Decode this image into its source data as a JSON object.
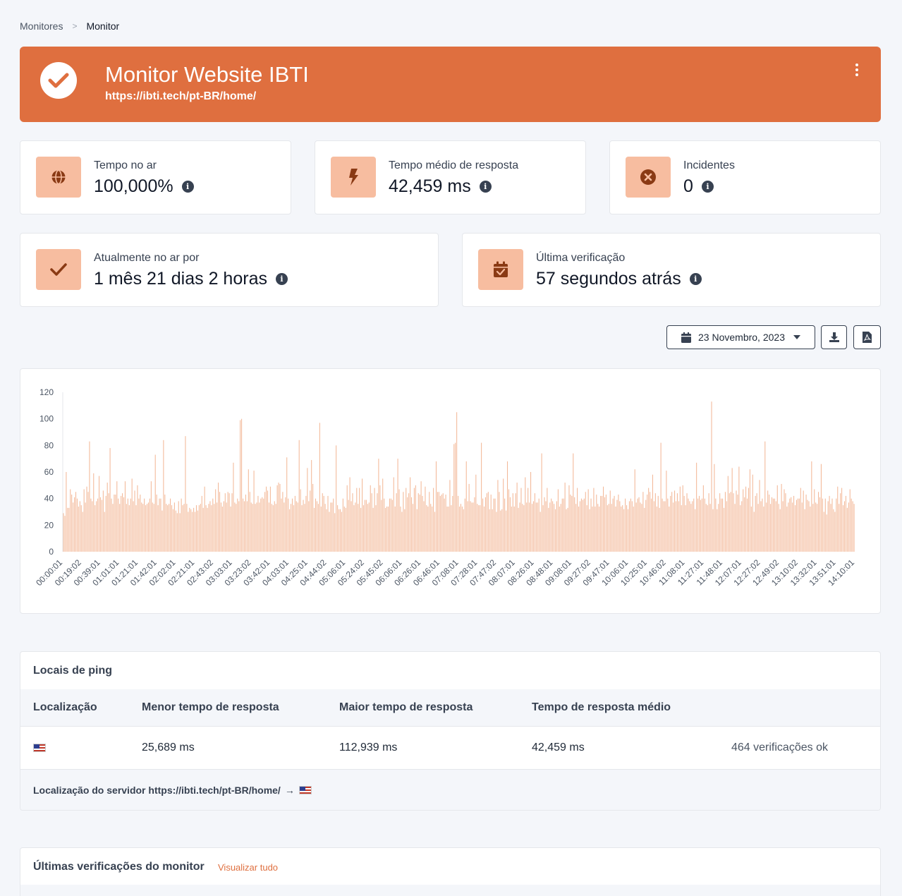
{
  "breadcrumb": {
    "parent": "Monitores",
    "separator": ">",
    "current": "Monitor"
  },
  "header": {
    "title": "Monitor Website IBTI",
    "url": "https://ibti.tech/pt-BR/home/",
    "status_icon": "check-circle-icon",
    "menu_icon": "ellipsis-vertical-icon"
  },
  "stats": {
    "uptime": {
      "label": "Tempo no ar",
      "value": "100,000%",
      "icon": "globe-icon"
    },
    "avg_response": {
      "label": "Tempo médio de resposta",
      "value": "42,459 ms",
      "icon": "bolt-icon"
    },
    "incidents": {
      "label": "Incidentes",
      "value": "0",
      "icon": "x-circle-icon"
    },
    "current_uptime": {
      "label": "Atualmente no ar por",
      "value": "1 mês 21 dias 2 horas",
      "icon": "check-icon"
    },
    "last_check": {
      "label": "Última verificação",
      "value": "57 segundos atrás",
      "icon": "calendar-check-icon"
    }
  },
  "toolbar": {
    "date": "23 Novembro, 2023",
    "download_icon": "download-icon",
    "pdf_icon": "file-pdf-icon"
  },
  "colors": {
    "accent": "#df6f3f",
    "icon_bg": "#f7bda0",
    "bar": "#f3b999"
  },
  "chart_data": {
    "type": "bar",
    "ylim": [
      0,
      120
    ],
    "yticks": [
      0,
      20,
      40,
      60,
      80,
      100,
      120
    ],
    "tick_labels": [
      "00:00:01",
      "00:19:02",
      "00:39:01",
      "01:01:01",
      "01:21:01",
      "01:42:01",
      "02:02:01",
      "02:21:01",
      "02:43:02",
      "03:03:01",
      "03:23:02",
      "03:42:01",
      "04:03:01",
      "04:25:01",
      "04:44:02",
      "05:06:01",
      "05:24:02",
      "05:45:02",
      "06:06:01",
      "06:26:01",
      "06:46:01",
      "07:08:01",
      "07:28:01",
      "07:47:02",
      "08:07:01",
      "08:26:01",
      "08:48:01",
      "09:08:01",
      "09:27:02",
      "09:47:01",
      "10:06:01",
      "10:25:01",
      "10:46:02",
      "11:08:01",
      "11:27:01",
      "11:48:01",
      "12:07:01",
      "12:27:02",
      "12:49:02",
      "13:10:02",
      "13:32:01",
      "13:51:01",
      "14:10:01"
    ],
    "values": [
      29,
      27,
      60,
      33,
      33,
      47,
      43,
      37,
      41,
      45,
      40,
      34,
      38,
      35,
      30,
      47,
      37,
      49,
      45,
      83,
      40,
      38,
      59,
      35,
      38,
      40,
      57,
      41,
      39,
      46,
      30,
      42,
      52,
      44,
      78,
      40,
      36,
      43,
      43,
      53,
      40,
      36,
      42,
      44,
      41,
      53,
      36,
      40,
      35,
      40,
      55,
      38,
      46,
      35,
      50,
      40,
      43,
      37,
      36,
      40,
      35,
      36,
      37,
      40,
      53,
      37,
      36,
      73,
      43,
      35,
      40,
      40,
      31,
      84,
      43,
      36,
      35,
      36,
      40,
      35,
      32,
      37,
      31,
      29,
      38,
      29,
      40,
      35,
      36,
      87,
      36,
      30,
      33,
      32,
      30,
      33,
      30,
      35,
      31,
      35,
      36,
      42,
      33,
      49,
      35,
      33,
      36,
      38,
      35,
      40,
      36,
      47,
      37,
      52,
      45,
      37,
      34,
      38,
      44,
      37,
      45,
      44,
      34,
      44,
      67,
      37,
      36,
      40,
      38,
      99,
      100,
      40,
      38,
      43,
      38,
      62,
      45,
      37,
      36,
      61,
      36,
      37,
      42,
      37,
      40,
      41,
      40,
      45,
      49,
      46,
      37,
      49,
      36,
      35,
      38,
      36,
      50,
      52,
      51,
      40,
      45,
      37,
      41,
      71,
      40,
      32,
      36,
      40,
      35,
      42,
      38,
      37,
      84,
      47,
      35,
      39,
      36,
      42,
      63,
      38,
      46,
      69,
      51,
      33,
      40,
      38,
      36,
      97,
      34,
      44,
      42,
      36,
      32,
      42,
      30,
      37,
      37,
      40,
      29,
      80,
      35,
      32,
      32,
      30,
      40,
      34,
      33,
      50,
      39,
      56,
      38,
      44,
      35,
      37,
      48,
      36,
      48,
      33,
      55,
      35,
      39,
      39,
      36,
      37,
      50,
      44,
      33,
      48,
      35,
      44,
      70,
      50,
      39,
      55,
      40,
      33,
      34,
      34,
      40,
      40,
      39,
      56,
      34,
      44,
      70,
      47,
      34,
      30,
      45,
      32,
      48,
      41,
      44,
      56,
      41,
      36,
      48,
      50,
      32,
      44,
      43,
      53,
      42,
      38,
      49,
      35,
      34,
      45,
      36,
      34,
      48,
      30,
      68,
      45,
      45,
      42,
      43,
      44,
      40,
      43,
      34,
      34,
      54,
      35,
      42,
      81,
      82,
      105,
      42,
      34,
      36,
      34,
      32,
      40,
      68,
      38,
      51,
      38,
      37,
      37,
      41,
      58,
      36,
      35,
      35,
      82,
      40,
      34,
      41,
      44,
      45,
      32,
      43,
      32,
      40,
      40,
      30,
      54,
      45,
      31,
      32,
      55,
      40,
      31,
      68,
      47,
      41,
      34,
      44,
      34,
      44,
      52,
      33,
      37,
      48,
      36,
      35,
      56,
      37,
      48,
      37,
      60,
      36,
      38,
      44,
      37,
      37,
      40,
      30,
      74,
      35,
      41,
      38,
      48,
      33,
      37,
      40,
      38,
      36,
      32,
      38,
      47,
      34,
      36,
      40,
      40,
      52,
      32,
      33,
      50,
      43,
      42,
      74,
      41,
      36,
      48,
      34,
      38,
      40,
      39,
      40,
      45,
      35,
      47,
      32,
      40,
      34,
      48,
      34,
      43,
      36,
      34,
      42,
      42,
      49,
      41,
      43,
      35,
      36,
      46,
      36,
      40,
      42,
      34,
      39,
      43,
      38,
      34,
      35,
      32,
      40,
      35,
      32,
      38,
      40,
      38,
      34,
      62,
      37,
      40,
      41,
      37,
      36,
      45,
      33,
      39,
      43,
      48,
      45,
      40,
      58,
      38,
      44,
      34,
      42,
      33,
      82,
      40,
      38,
      38,
      61,
      40,
      34,
      42,
      45,
      37,
      46,
      38,
      44,
      38,
      49,
      35,
      50,
      42,
      35,
      44,
      40,
      38,
      36,
      38,
      40,
      32,
      67,
      40,
      42,
      39,
      40,
      50,
      40,
      36,
      35,
      44,
      36,
      113,
      32,
      66,
      40,
      32,
      36,
      44,
      40,
      40,
      33,
      45,
      38,
      57,
      44,
      45,
      63,
      44,
      36,
      46,
      43,
      64,
      35,
      38,
      47,
      41,
      49,
      40,
      48,
      62,
      34,
      58,
      30,
      42,
      44,
      36,
      54,
      38,
      40,
      34,
      83,
      37,
      46,
      43,
      36,
      41,
      40,
      40,
      38,
      50,
      36,
      32,
      51,
      38,
      47,
      44,
      34,
      37,
      40,
      41,
      37,
      42,
      35,
      39,
      40,
      40,
      48,
      37,
      46,
      32,
      43,
      39,
      38,
      34,
      68,
      36,
      47,
      37,
      36,
      45,
      41,
      66,
      40,
      30,
      40,
      28,
      38,
      42,
      36,
      40,
      32,
      30,
      40,
      49,
      36,
      44,
      48,
      35,
      38,
      42,
      33,
      37,
      47,
      40,
      38,
      36
    ]
  },
  "ping": {
    "title": "Locais de ping",
    "headers": [
      "Localização",
      "Menor tempo de resposta",
      "Maior tempo de resposta",
      "Tempo de resposta médio"
    ],
    "row": {
      "location_icon": "us-flag-icon",
      "min": "25,689 ms",
      "max": "112,939 ms",
      "avg": "42,459 ms",
      "checks": "464 verificações ok"
    },
    "footer": "Localização do servidor https://ibti.tech/pt-BR/home/",
    "footer_arrow": "→"
  },
  "last_checks": {
    "title": "Últimas verificações do monitor",
    "view_all": "Visualizar tudo"
  }
}
